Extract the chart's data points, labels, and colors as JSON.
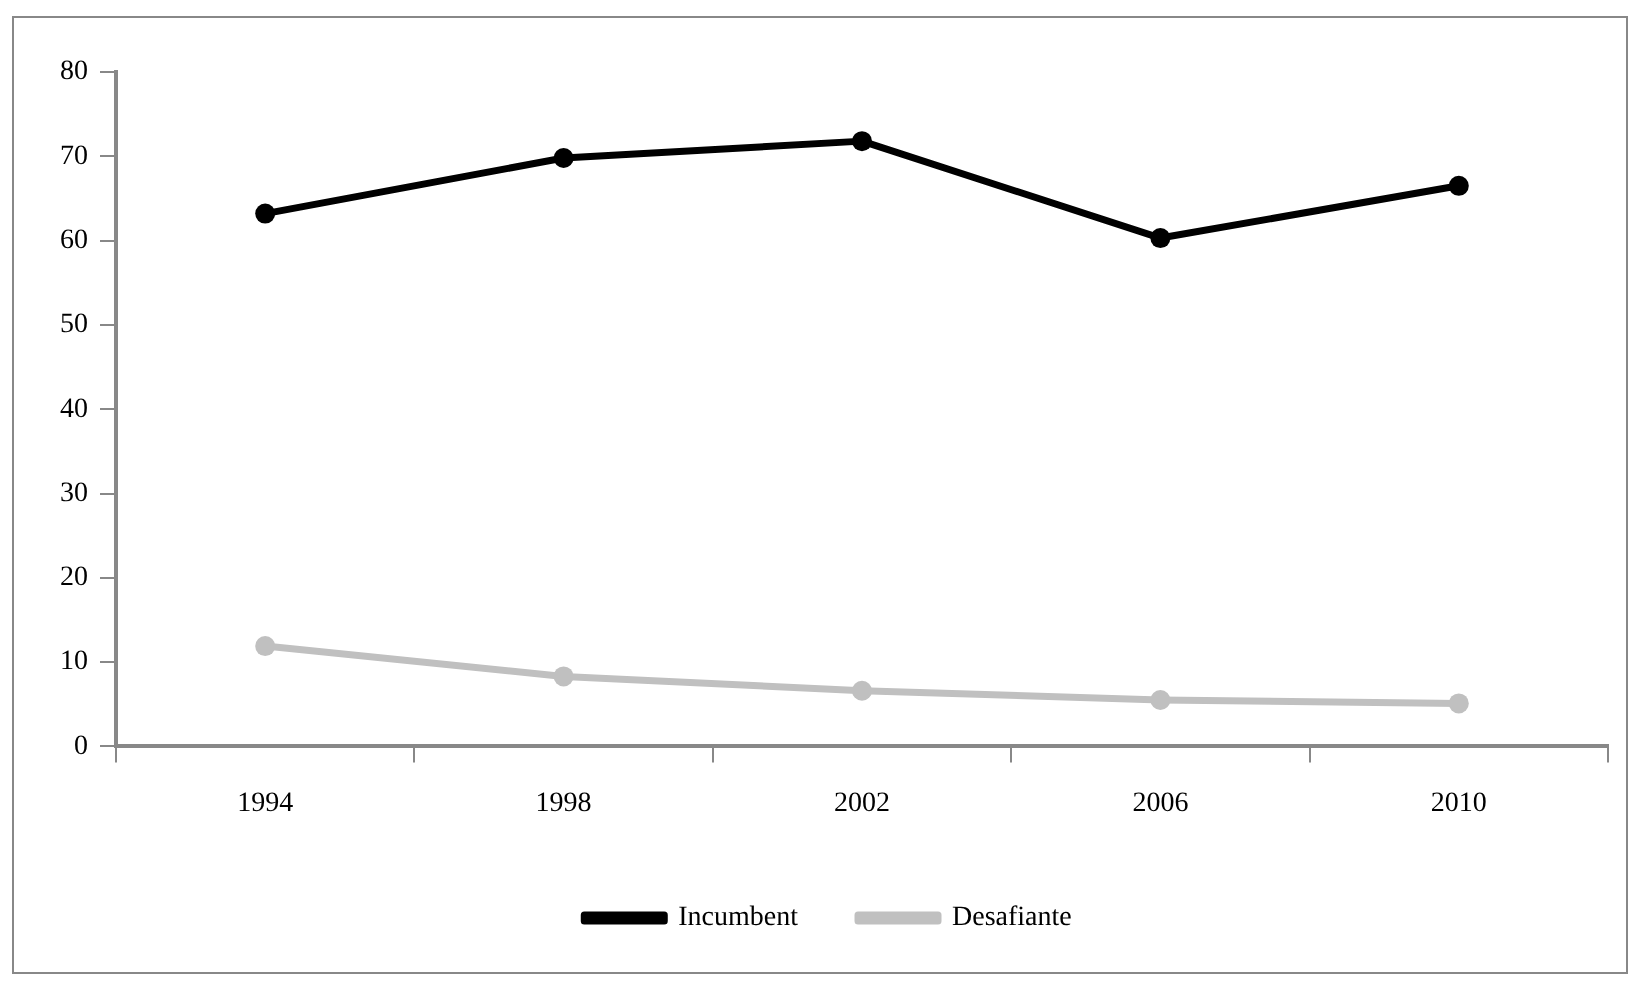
{
  "chart_data": {
    "type": "line",
    "categories": [
      "1994",
      "1998",
      "2002",
      "2006",
      "2010"
    ],
    "series": [
      {
        "name": "Incumbent",
        "color": "#000000",
        "values": [
          63.2,
          69.8,
          71.8,
          60.3,
          66.5
        ]
      },
      {
        "name": "Desafiante",
        "color": "#c0c0c0",
        "values": [
          11.9,
          8.3,
          6.6,
          5.5,
          5.1
        ]
      }
    ],
    "ylim": [
      0,
      80
    ],
    "yticks": [
      0,
      10,
      20,
      30,
      40,
      50,
      60,
      70,
      80
    ],
    "grid": false,
    "legend": "bottom",
    "marker": "circle",
    "line_style": "solid"
  }
}
